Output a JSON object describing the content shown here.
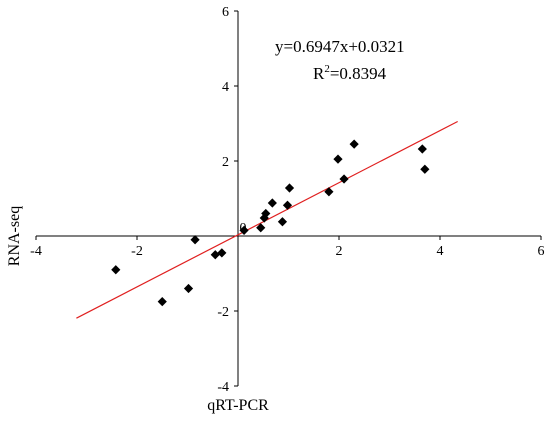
{
  "chart_data": {
    "type": "scatter",
    "xlabel": "qRT-PCR",
    "ylabel": "RNA-seq",
    "xlim": [
      -4,
      6
    ],
    "ylim": [
      -4,
      6
    ],
    "xticks": [
      "-4",
      "-2",
      "0",
      "2",
      "4",
      "6"
    ],
    "yticks": [
      "-4",
      "-2",
      "2",
      "4",
      "6"
    ],
    "origin_label": "0",
    "grid": false,
    "legend": "none",
    "points_color": "#000000",
    "trend_color": "#e02020",
    "equation": "y=0.6947x+0.0321",
    "r2_prefix": "R",
    "r2_sup": "2",
    "r2_value": "=0.8394",
    "trendline": {
      "slope": 0.6947,
      "intercept": 0.0321,
      "x_range": [
        -3.2,
        4.35
      ]
    },
    "points": [
      [
        -2.42,
        -0.9
      ],
      [
        -1.5,
        -1.75
      ],
      [
        -0.98,
        -1.4
      ],
      [
        -0.85,
        -0.1
      ],
      [
        -0.45,
        -0.5
      ],
      [
        -0.32,
        -0.45
      ],
      [
        0.12,
        0.15
      ],
      [
        0.45,
        0.22
      ],
      [
        0.52,
        0.48
      ],
      [
        0.55,
        0.6
      ],
      [
        0.68,
        0.88
      ],
      [
        0.88,
        0.38
      ],
      [
        0.98,
        0.82
      ],
      [
        1.02,
        1.28
      ],
      [
        1.8,
        1.18
      ],
      [
        1.98,
        2.05
      ],
      [
        2.1,
        1.52
      ],
      [
        2.3,
        2.45
      ],
      [
        3.65,
        2.32
      ],
      [
        3.7,
        1.78
      ]
    ]
  }
}
